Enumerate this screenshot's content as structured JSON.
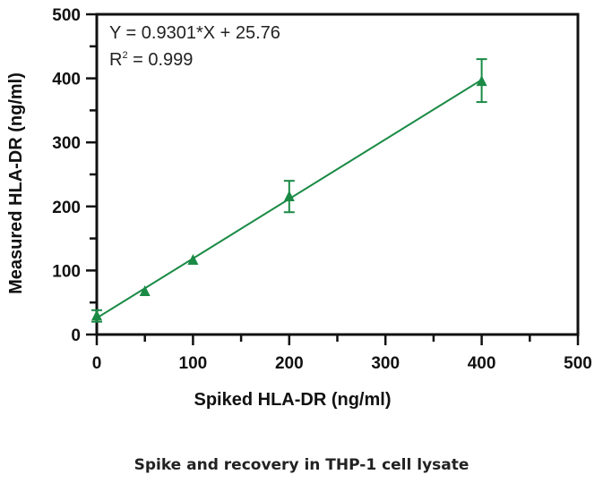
{
  "chart_data": {
    "type": "scatter",
    "title": "",
    "xlabel": "Spiked HLA-DR (ng/ml)",
    "ylabel": "Measured HLA-DR (ng/ml)",
    "xlim": [
      0,
      500
    ],
    "ylim": [
      0,
      500
    ],
    "xticks": [
      "0",
      "100",
      "200",
      "300",
      "400",
      "500"
    ],
    "yticks": [
      "0",
      "100",
      "200",
      "300",
      "400",
      "500"
    ],
    "grid": false,
    "series": [
      {
        "name": "HLA-DR",
        "color": "#1a8a45",
        "marker": "triangle",
        "x": [
          0,
          50,
          100,
          200,
          400
        ],
        "y": [
          29,
          67,
          116,
          215,
          395
        ],
        "err_low": [
          20,
          67,
          116,
          191,
          363
        ],
        "err_high": [
          38,
          67,
          116,
          240,
          430
        ]
      }
    ],
    "fit": {
      "slope": 0.9301,
      "intercept": 25.76,
      "color": "#1a8a45"
    },
    "annotations": [
      "Y = 0.9301*X + 25.76",
      "R",
      "2",
      " = 0.999"
    ]
  },
  "caption": "Spike and recovery in THP-1 cell lysate"
}
